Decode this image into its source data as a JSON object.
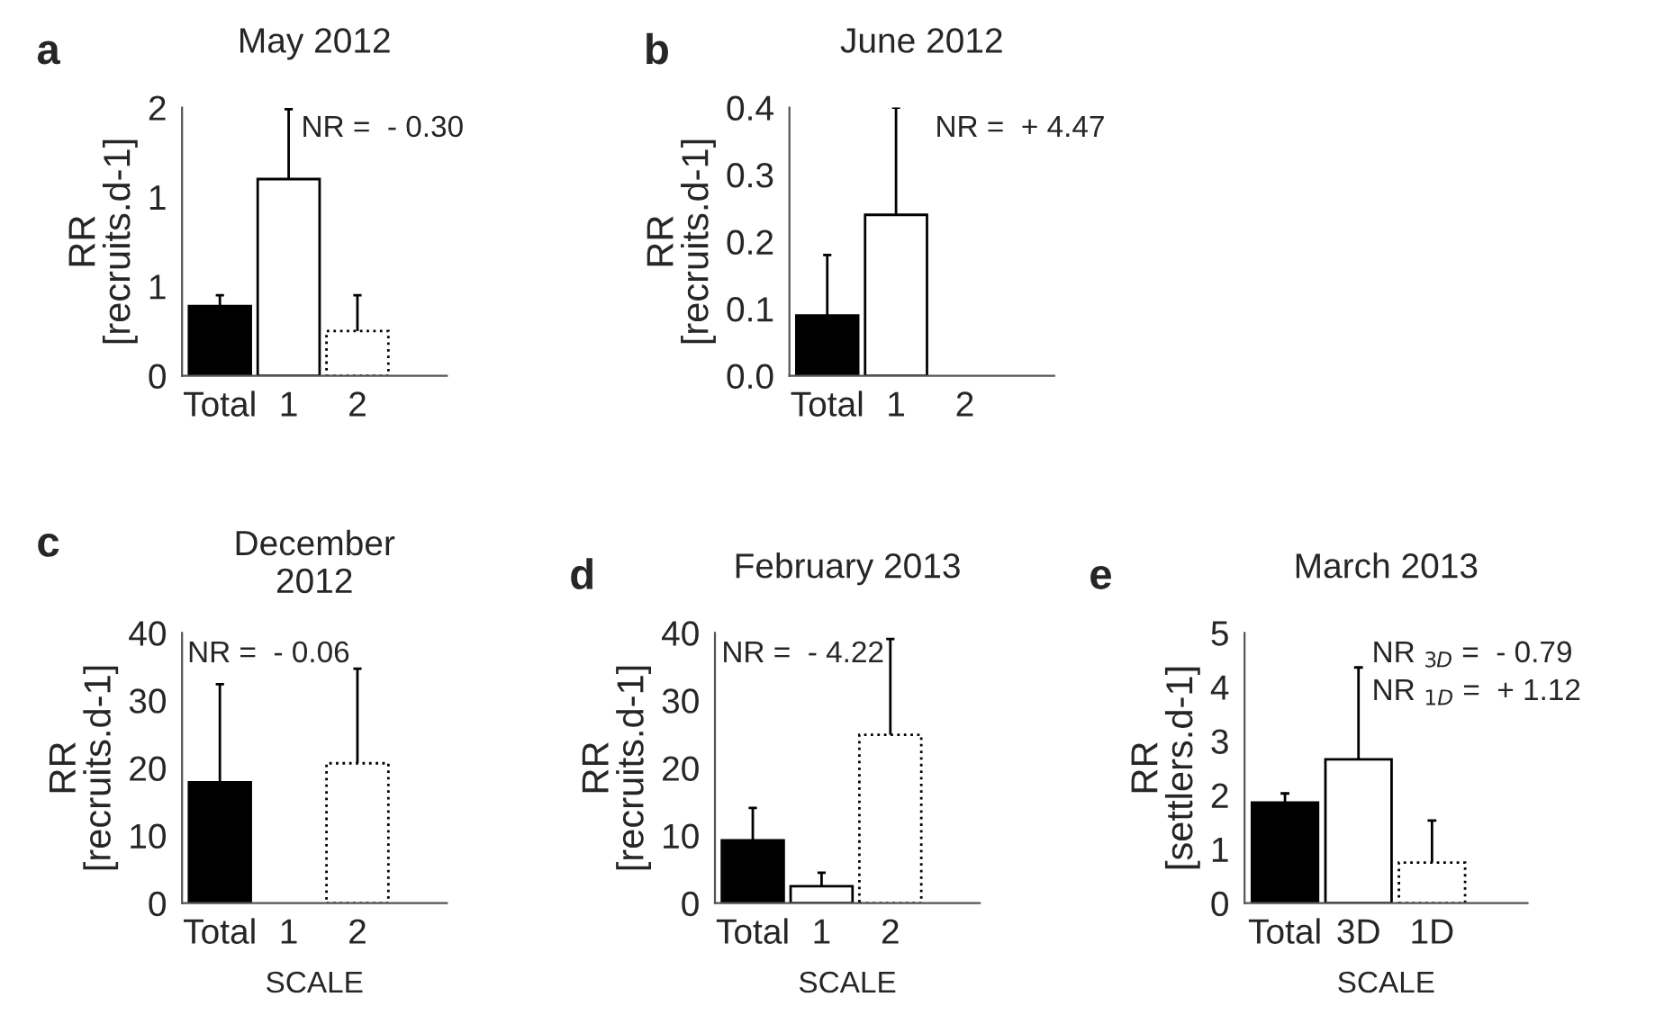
{
  "chart_data": [
    {
      "type": "bar",
      "title": "May 2012",
      "ylabel": "RR\n[recruits.d-1]",
      "categories": [
        "Total",
        "1",
        "2"
      ],
      "values": [
        0.39,
        1.1,
        0.25
      ],
      "colors": [
        "#000000",
        "#ffffff",
        "#ffffff"
      ],
      "errors": [
        [
          0.39,
          0.45
        ],
        [
          1.1,
          1.49
        ],
        [
          0.25,
          0.45
        ]
      ],
      "ylim": [
        0,
        1.5
      ],
      "yticks": [
        0,
        {
          "value": 0.5,
          "label": "1"
        },
        {
          "value": 1.0,
          "label": "1"
        },
        {
          "value": 1.5,
          "label": "2"
        }
      ],
      "annotations": [
        "a",
        "NR =  - 0.30"
      ]
    },
    {
      "type": "bar",
      "title": "June 2012",
      "ylabel": "RR\n[recruits.d-1]",
      "categories": [
        "Total",
        "1",
        "2"
      ],
      "values": [
        0.09,
        0.24,
        null
      ],
      "colors": [
        "#000000",
        "#ffffff",
        "#ffffff"
      ],
      "errors": [
        [
          0.09,
          0.18
        ],
        [
          0.24,
          0.4
        ],
        null
      ],
      "ylim": [
        0,
        0.4
      ],
      "yticks": [
        {
          "value": 0,
          "label": "0.0"
        },
        0.1,
        0.2,
        0.3,
        0.4
      ],
      "annotations": [
        "b",
        "NR =  + 4.47"
      ]
    },
    {
      "type": "bar",
      "title": "December\n2012",
      "ylabel": "RR\n[recruits.d-1]",
      "xlabel": "SCALE",
      "categories": [
        "Total",
        "1",
        "2"
      ],
      "values": [
        17.9,
        null,
        20.7
      ],
      "colors": [
        "#000000",
        "#ffffff",
        "#ffffff"
      ],
      "errors": [
        [
          17.9,
          32.4
        ],
        null,
        [
          20.7,
          34.7
        ]
      ],
      "ylim": [
        0,
        40
      ],
      "yticks": [
        0,
        10,
        20,
        30,
        40
      ],
      "annotations": [
        "c",
        "NR =  - 0.06"
      ]
    },
    {
      "type": "bar",
      "title": "February 2013",
      "ylabel": "RR\n[recruits.d-1]",
      "xlabel": "SCALE",
      "categories": [
        "Total",
        "1",
        "2"
      ],
      "values": [
        9.3,
        2.5,
        24.9
      ],
      "colors": [
        "#000000",
        "#ffffff",
        "#ffffff"
      ],
      "errors": [
        [
          9.3,
          14.1
        ],
        [
          2.5,
          4.5
        ],
        [
          24.9,
          39.1
        ]
      ],
      "ylim": [
        0,
        40
      ],
      "yticks": [
        0,
        10,
        20,
        30,
        40
      ],
      "annotations": [
        "d",
        "NR =  - 4.22"
      ]
    },
    {
      "type": "bar",
      "title": "March 2013",
      "ylabel": "RR\n[settlers.d-1]",
      "xlabel": "SCALE",
      "categories": [
        "Total",
        "3D",
        "1D"
      ],
      "values": [
        1.86,
        2.66,
        0.75
      ],
      "colors": [
        "#000000",
        "#ffffff",
        "#ffffff"
      ],
      "errors": [
        [
          1.86,
          2.03
        ],
        [
          2.66,
          4.36
        ],
        [
          0.75,
          1.53
        ]
      ],
      "ylim": [
        0,
        5
      ],
      "yticks": [
        0,
        1,
        2,
        3,
        4,
        5
      ],
      "annotations": [
        "e",
        "NR $_{3D}$ =  - 0.79",
        "NR $_{1D}$ =  + 1.12"
      ]
    }
  ]
}
